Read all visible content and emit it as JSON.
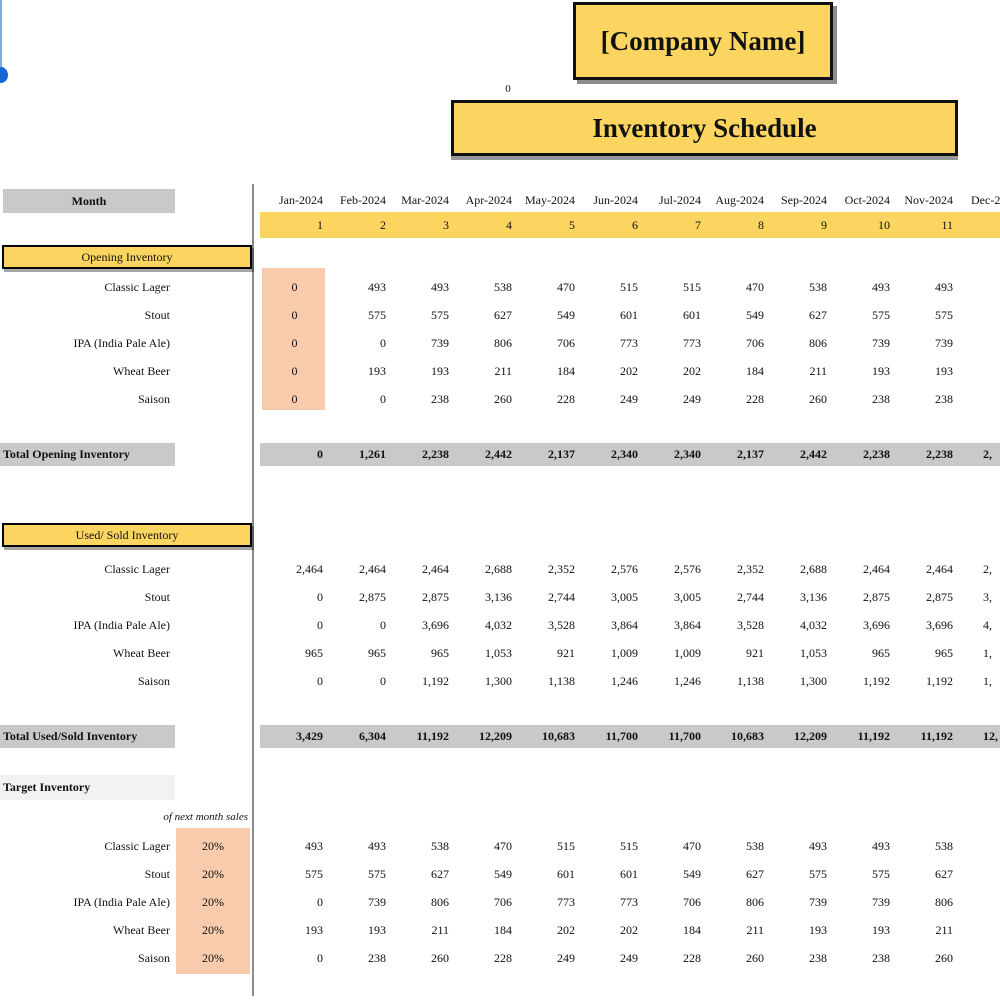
{
  "header": {
    "company_name": "[Company Name]",
    "stray_value": "0",
    "sheet_title": "Inventory Schedule"
  },
  "table": {
    "month_label": "Month",
    "months": [
      "Jan-2024",
      "Feb-2024",
      "Mar-2024",
      "Apr-2024",
      "May-2024",
      "Jun-2024",
      "Jul-2024",
      "Aug-2024",
      "Sep-2024",
      "Oct-2024",
      "Nov-2024",
      "Dec-2"
    ],
    "month_numbers": [
      "1",
      "2",
      "3",
      "4",
      "5",
      "6",
      "7",
      "8",
      "9",
      "10",
      "11",
      ""
    ]
  },
  "opening": {
    "header": "Opening Inventory",
    "rows": [
      {
        "label": "Classic Lager",
        "values": [
          "0",
          "493",
          "493",
          "538",
          "470",
          "515",
          "515",
          "470",
          "538",
          "493",
          "493",
          ""
        ]
      },
      {
        "label": "Stout",
        "values": [
          "0",
          "575",
          "575",
          "627",
          "549",
          "601",
          "601",
          "549",
          "627",
          "575",
          "575",
          ""
        ]
      },
      {
        "label": "IPA (India Pale Ale)",
        "values": [
          "0",
          "0",
          "739",
          "806",
          "706",
          "773",
          "773",
          "706",
          "806",
          "739",
          "739",
          ""
        ]
      },
      {
        "label": "Wheat Beer",
        "values": [
          "0",
          "193",
          "193",
          "211",
          "184",
          "202",
          "202",
          "184",
          "211",
          "193",
          "193",
          ""
        ]
      },
      {
        "label": "Saison",
        "values": [
          "0",
          "0",
          "238",
          "260",
          "228",
          "249",
          "249",
          "228",
          "260",
          "238",
          "238",
          ""
        ]
      }
    ],
    "total": {
      "label": "Total Opening Inventory",
      "values": [
        "0",
        "1,261",
        "2,238",
        "2,442",
        "2,137",
        "2,340",
        "2,340",
        "2,137",
        "2,442",
        "2,238",
        "2,238",
        "2,"
      ]
    }
  },
  "used": {
    "header": "Used/ Sold Inventory",
    "rows": [
      {
        "label": "Classic Lager",
        "values": [
          "2,464",
          "2,464",
          "2,464",
          "2,688",
          "2,352",
          "2,576",
          "2,576",
          "2,352",
          "2,688",
          "2,464",
          "2,464",
          "2,"
        ]
      },
      {
        "label": "Stout",
        "values": [
          "0",
          "2,875",
          "2,875",
          "3,136",
          "2,744",
          "3,005",
          "3,005",
          "2,744",
          "3,136",
          "2,875",
          "2,875",
          "3,"
        ]
      },
      {
        "label": "IPA (India Pale Ale)",
        "values": [
          "0",
          "0",
          "3,696",
          "4,032",
          "3,528",
          "3,864",
          "3,864",
          "3,528",
          "4,032",
          "3,696",
          "3,696",
          "4,"
        ]
      },
      {
        "label": "Wheat Beer",
        "values": [
          "965",
          "965",
          "965",
          "1,053",
          "921",
          "1,009",
          "1,009",
          "921",
          "1,053",
          "965",
          "965",
          "1,"
        ]
      },
      {
        "label": "Saison",
        "values": [
          "0",
          "0",
          "1,192",
          "1,300",
          "1,138",
          "1,246",
          "1,246",
          "1,138",
          "1,300",
          "1,192",
          "1,192",
          "1,"
        ]
      }
    ],
    "total": {
      "label": "Total Used/Sold Inventory",
      "values": [
        "3,429",
        "6,304",
        "11,192",
        "12,209",
        "10,683",
        "11,700",
        "11,700",
        "10,683",
        "12,209",
        "11,192",
        "11,192",
        "12,"
      ]
    }
  },
  "target": {
    "header": "Target Inventory",
    "subheader": "of next month sales",
    "rows": [
      {
        "label": "Classic Lager",
        "percent": "20%",
        "values": [
          "493",
          "493",
          "538",
          "470",
          "515",
          "515",
          "470",
          "538",
          "493",
          "493",
          "538",
          ""
        ]
      },
      {
        "label": "Stout",
        "percent": "20%",
        "values": [
          "575",
          "575",
          "627",
          "549",
          "601",
          "601",
          "549",
          "627",
          "575",
          "575",
          "627",
          ""
        ]
      },
      {
        "label": "IPA (India Pale Ale)",
        "percent": "20%",
        "values": [
          "0",
          "739",
          "806",
          "706",
          "773",
          "773",
          "706",
          "806",
          "739",
          "739",
          "806",
          ""
        ]
      },
      {
        "label": "Wheat Beer",
        "percent": "20%",
        "values": [
          "193",
          "193",
          "211",
          "184",
          "202",
          "202",
          "184",
          "211",
          "193",
          "193",
          "211",
          ""
        ]
      },
      {
        "label": "Saison",
        "percent": "20%",
        "values": [
          "0",
          "238",
          "260",
          "228",
          "249",
          "249",
          "228",
          "260",
          "238",
          "238",
          "260",
          ""
        ]
      }
    ]
  },
  "colors": {
    "accent_yellow": "#FBD560",
    "accent_orange": "#F8CBAD",
    "band_gray": "#C9C9C9",
    "light_gray": "#F2F2F2",
    "selection_blue": "#1F6BD6"
  }
}
